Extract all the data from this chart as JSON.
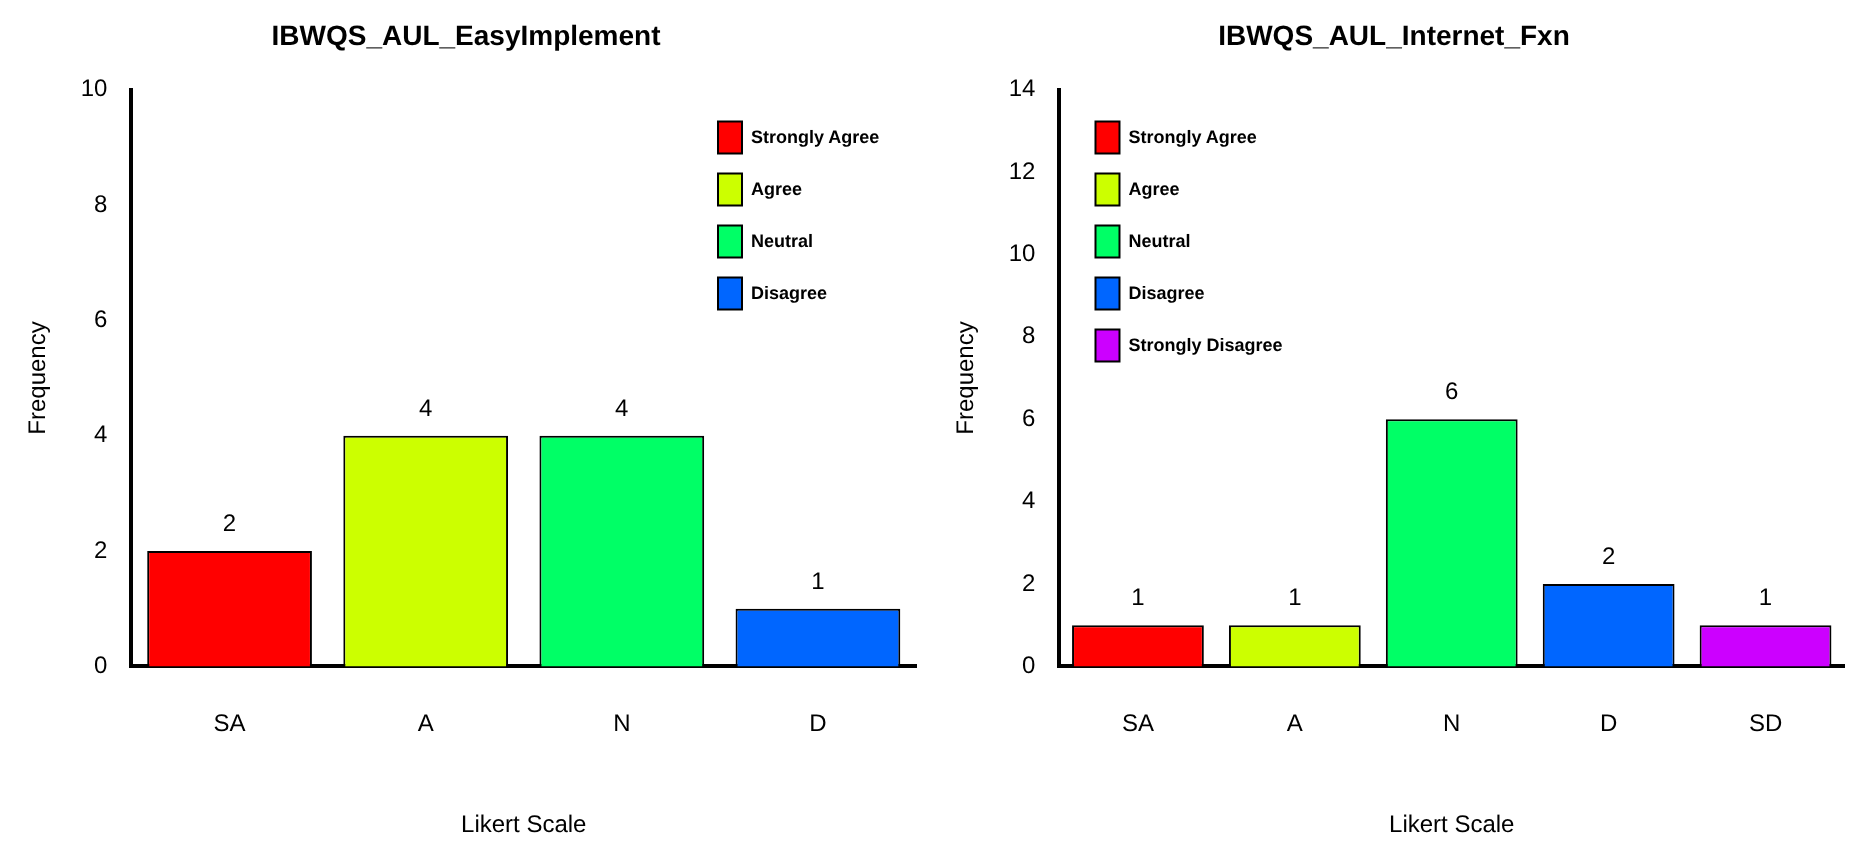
{
  "chart_data": [
    {
      "type": "bar",
      "title": "IBWQS_AUL_EasyImplement",
      "xlabel": "Likert Scale",
      "ylabel": "Frequency",
      "categories": [
        "SA",
        "A",
        "N",
        "D"
      ],
      "series": [
        {
          "name": "Strongly Agree",
          "color": "#ff0000",
          "values": [
            2,
            null,
            null,
            null
          ]
        },
        {
          "name": "Agree",
          "color": "#ccff00",
          "values": [
            null,
            4,
            null,
            null
          ]
        },
        {
          "name": "Neutral",
          "color": "#00ff66",
          "values": [
            null,
            null,
            4,
            null
          ]
        },
        {
          "name": "Disagree",
          "color": "#0066ff",
          "values": [
            null,
            null,
            null,
            1
          ]
        }
      ],
      "ylim": [
        0,
        10
      ],
      "yticks": [
        0,
        2,
        4,
        6,
        8,
        10
      ],
      "grid": false,
      "legend": "top right",
      "data_labels": true
    },
    {
      "type": "bar",
      "title": "IBWQS_AUL_Internet_Fxn",
      "xlabel": "Likert Scale",
      "ylabel": "Frequency",
      "categories": [
        "SA",
        "A",
        "N",
        "D",
        "SD"
      ],
      "series": [
        {
          "name": "Strongly Agree",
          "color": "#ff0000",
          "values": [
            1,
            null,
            null,
            null,
            null
          ]
        },
        {
          "name": "Agree",
          "color": "#ccff00",
          "values": [
            null,
            1,
            null,
            null,
            null
          ]
        },
        {
          "name": "Neutral",
          "color": "#00ff66",
          "values": [
            null,
            null,
            6,
            null,
            null
          ]
        },
        {
          "name": "Disagree",
          "color": "#0066ff",
          "values": [
            null,
            null,
            null,
            2,
            null
          ]
        },
        {
          "name": "Strongly Disagree",
          "color": "#cc00ff",
          "values": [
            null,
            null,
            null,
            null,
            1
          ]
        }
      ],
      "ylim": [
        0,
        14
      ],
      "yticks": [
        0,
        2,
        4,
        6,
        8,
        10,
        12,
        14
      ],
      "grid": false,
      "legend": "top left",
      "data_labels": true
    }
  ]
}
